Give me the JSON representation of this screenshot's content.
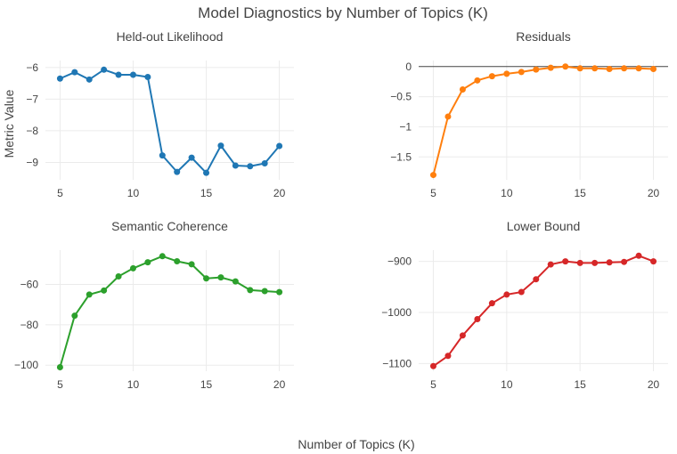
{
  "figure": {
    "title": "Model Diagnostics by Number of Topics (K)",
    "xlabel": "Number of Topics (K)",
    "ylabel": "Metric Value"
  },
  "chart_data": [
    {
      "type": "line",
      "id": "heldout",
      "title": "Held-out Likelihood",
      "color": "#1f77b4",
      "x": [
        5,
        6,
        7,
        8,
        9,
        10,
        11,
        12,
        13,
        14,
        15,
        16,
        17,
        18,
        19,
        20
      ],
      "y": [
        -6.35,
        -6.15,
        -6.38,
        -6.07,
        -6.23,
        -6.23,
        -6.3,
        -8.78,
        -9.3,
        -8.85,
        -9.33,
        -8.47,
        -9.1,
        -9.12,
        -9.03,
        -8.48
      ],
      "xlim": [
        4,
        21
      ],
      "ylim": [
        -9.55,
        -5.78
      ],
      "xticks": [
        5,
        10,
        15,
        20
      ],
      "yticks": [
        -9,
        -8,
        -7,
        -6
      ],
      "zeroline": false
    },
    {
      "type": "line",
      "id": "residuals",
      "title": "Residuals",
      "color": "#ff7f0e",
      "x": [
        5,
        6,
        7,
        8,
        9,
        10,
        11,
        12,
        13,
        14,
        15,
        16,
        17,
        18,
        19,
        20
      ],
      "y": [
        -1.8,
        -0.83,
        -0.38,
        -0.23,
        -0.16,
        -0.12,
        -0.09,
        -0.05,
        -0.02,
        0.0,
        -0.03,
        -0.03,
        -0.04,
        -0.03,
        -0.03,
        -0.04
      ],
      "xlim": [
        4,
        21
      ],
      "ylim": [
        -1.88,
        0.1
      ],
      "xticks": [
        5,
        10,
        15,
        20
      ],
      "yticks": [
        -1.5,
        -1,
        -0.5,
        0
      ],
      "zeroline": true
    },
    {
      "type": "line",
      "id": "coherence",
      "title": "Semantic Coherence",
      "color": "#2ca02c",
      "x": [
        5,
        6,
        7,
        8,
        9,
        10,
        11,
        12,
        13,
        14,
        15,
        16,
        17,
        18,
        19,
        20
      ],
      "y": [
        -101,
        -75.5,
        -65,
        -63,
        -56,
        -52,
        -49,
        -46,
        -48.5,
        -50,
        -57,
        -56.5,
        -58.5,
        -62.8,
        -63.3,
        -63.8
      ],
      "xlim": [
        4,
        21
      ],
      "ylim": [
        -103,
        -43
      ],
      "xticks": [
        5,
        10,
        15,
        20
      ],
      "yticks": [
        -100,
        -80,
        -60
      ],
      "zeroline": false
    },
    {
      "type": "line",
      "id": "lowerbound",
      "title": "Lower Bound",
      "color": "#d62728",
      "x": [
        5,
        6,
        7,
        8,
        9,
        10,
        11,
        12,
        13,
        14,
        15,
        16,
        17,
        18,
        19,
        20
      ],
      "y": [
        -1105,
        -1085,
        -1045,
        -1013,
        -982,
        -965,
        -960,
        -935,
        -906,
        -900,
        -903,
        -903,
        -902,
        -901,
        -889,
        -900
      ],
      "xlim": [
        4,
        21
      ],
      "ylim": [
        -1115,
        -878
      ],
      "xticks": [
        5,
        10,
        15,
        20
      ],
      "yticks": [
        -1100,
        -1000,
        -900
      ],
      "zeroline": false
    }
  ]
}
